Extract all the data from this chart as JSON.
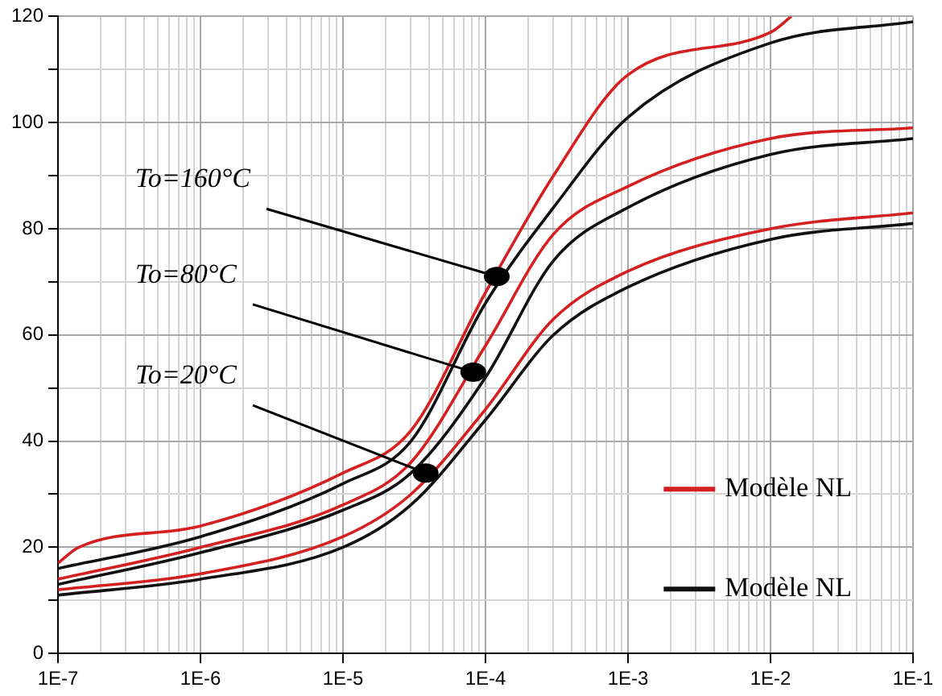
{
  "chart_data": {
    "type": "line",
    "log": "x",
    "grid": true,
    "legend": "bottom right",
    "marker": "none",
    "line_style": "solid",
    "xlim": [
      1e-07,
      0.1
    ],
    "xticks": [
      {
        "value": 1e-07,
        "label": "1E-7"
      },
      {
        "value": 2e-07,
        "label": null
      },
      {
        "value": 3e-07,
        "label": null
      },
      {
        "value": 4e-07,
        "label": null
      },
      {
        "value": 5e-07,
        "label": null
      },
      {
        "value": 6e-07,
        "label": null
      },
      {
        "value": 7e-07,
        "label": null
      },
      {
        "value": 8e-07,
        "label": null
      },
      {
        "value": 9e-07,
        "label": null
      },
      {
        "value": 1e-06,
        "label": "1E-6"
      },
      {
        "value": 2e-06,
        "label": null
      },
      {
        "value": 3e-06,
        "label": null
      },
      {
        "value": 4e-06,
        "label": null
      },
      {
        "value": 5e-06,
        "label": null
      },
      {
        "value": 6e-06,
        "label": null
      },
      {
        "value": 7e-06,
        "label": null
      },
      {
        "value": 8e-06,
        "label": null
      },
      {
        "value": 9e-06,
        "label": null
      },
      {
        "value": 1e-05,
        "label": "1E-5"
      },
      {
        "value": 2e-05,
        "label": null
      },
      {
        "value": 3e-05,
        "label": null
      },
      {
        "value": 4e-05,
        "label": null
      },
      {
        "value": 5e-05,
        "label": null
      },
      {
        "value": 6e-05,
        "label": null
      },
      {
        "value": 7e-05,
        "label": null
      },
      {
        "value": 8e-05,
        "label": null
      },
      {
        "value": 9e-05,
        "label": null
      },
      {
        "value": 0.0001,
        "label": "1E-4"
      },
      {
        "value": 0.0002,
        "label": null
      },
      {
        "value": 0.0003,
        "label": null
      },
      {
        "value": 0.0004,
        "label": null
      },
      {
        "value": 0.0005,
        "label": null
      },
      {
        "value": 0.0006,
        "label": null
      },
      {
        "value": 0.0007,
        "label": null
      },
      {
        "value": 0.0008,
        "label": null
      },
      {
        "value": 0.0009,
        "label": null
      },
      {
        "value": 0.001,
        "label": "1E-3"
      },
      {
        "value": 0.002,
        "label": null
      },
      {
        "value": 0.003,
        "label": null
      },
      {
        "value": 0.004,
        "label": null
      },
      {
        "value": 0.005,
        "label": null
      },
      {
        "value": 0.006,
        "label": null
      },
      {
        "value": 0.007,
        "label": null
      },
      {
        "value": 0.008,
        "label": null
      },
      {
        "value": 0.009,
        "label": null
      },
      {
        "value": 0.01,
        "label": "1E-2"
      },
      {
        "value": 0.02,
        "label": null
      },
      {
        "value": 0.03,
        "label": null
      },
      {
        "value": 0.04,
        "label": null
      },
      {
        "value": 0.05,
        "label": null
      },
      {
        "value": 0.06,
        "label": null
      },
      {
        "value": 0.07,
        "label": null
      },
      {
        "value": 0.08,
        "label": null
      },
      {
        "value": 0.09,
        "label": null
      },
      {
        "value": 0.1,
        "label": "1E-1"
      }
    ],
    "ylim": [
      0,
      120
    ],
    "yticks": [
      0,
      {
        "value": 10,
        "label": null
      },
      20,
      {
        "value": 30,
        "label": null
      },
      40,
      {
        "value": 50,
        "label": null
      },
      60,
      {
        "value": 70,
        "label": null
      },
      80,
      {
        "value": 90,
        "label": null
      },
      100,
      {
        "value": 110,
        "label": null
      },
      120
    ],
    "series": [
      {
        "name": "Modèle NL",
        "color": "#d42020",
        "x": [
          1e-07,
          1.4e-07,
          1e-06,
          1e-05,
          3e-05,
          0.0001,
          0.0003,
          0.001,
          0.01,
          0.014
        ],
        "values": [
          17,
          20,
          24,
          34,
          42,
          68,
          90,
          109,
          117,
          120
        ]
      },
      {
        "color": "#d42020",
        "x": [
          1e-07,
          1e-06,
          1e-05,
          3e-05,
          0.0001,
          0.0003,
          0.001,
          0.01,
          0.1
        ],
        "values": [
          14,
          20,
          28,
          36,
          58,
          79,
          88,
          97,
          99
        ]
      },
      {
        "color": "#d42020",
        "x": [
          1e-07,
          1e-06,
          1e-05,
          3e-05,
          0.0001,
          0.0003,
          0.001,
          0.01,
          0.1
        ],
        "values": [
          12,
          15,
          22,
          30,
          46,
          63,
          72,
          80,
          83
        ]
      },
      {
        "name": "Modèle NL",
        "color": "#111111",
        "x": [
          1e-07,
          1e-06,
          1e-05,
          3e-05,
          0.0001,
          0.0003,
          0.001,
          0.01,
          0.1
        ],
        "values": [
          16,
          22,
          32,
          40,
          66,
          84,
          101,
          115,
          119
        ]
      },
      {
        "color": "#111111",
        "x": [
          1e-07,
          1e-06,
          1e-05,
          3e-05,
          0.0001,
          0.0003,
          0.001,
          0.01,
          0.1
        ],
        "values": [
          13,
          19,
          27,
          34,
          52,
          74,
          84,
          94,
          97
        ]
      },
      {
        "color": "#111111",
        "x": [
          1e-07,
          1e-06,
          1e-05,
          3e-05,
          0.0001,
          0.0003,
          0.001,
          0.01,
          0.1
        ],
        "values": [
          11,
          14,
          20,
          28,
          44,
          60,
          69,
          78,
          81
        ]
      }
    ],
    "annotations": [
      {
        "text": "To=160°C",
        "x": 0.00012,
        "y": 71
      },
      {
        "text": "To=80°C",
        "x": 8.2e-05,
        "y": 53
      },
      {
        "text": "To=20°C",
        "x": 3.8e-05,
        "y": 34
      }
    ]
  }
}
